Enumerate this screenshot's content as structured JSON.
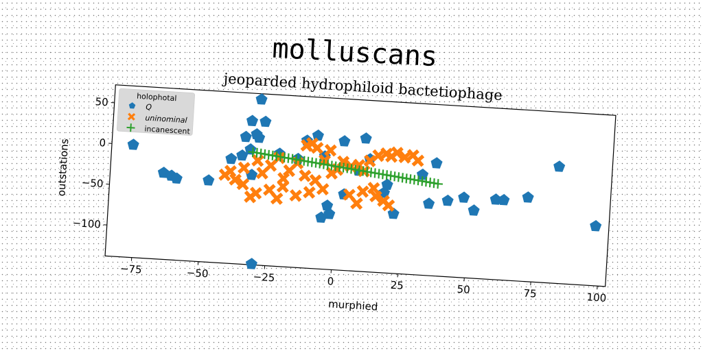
{
  "suptitle": "molluscans",
  "chart_data": {
    "type": "scatter",
    "title": "jeoparded hydrophiloid bactetiophage",
    "xlabel": "murphied",
    "ylabel": "outstations",
    "xlim": [
      -85,
      103
    ],
    "ylim": [
      -138,
      72
    ],
    "xticks": [
      -75,
      -50,
      -25,
      0,
      25,
      50,
      75,
      100
    ],
    "xticklabels": [
      "−75",
      "−50",
      "−25",
      "0",
      "25",
      "50",
      "75",
      "100"
    ],
    "yticks": [
      50,
      0,
      -50,
      -100
    ],
    "yticklabels": [
      "50",
      "0",
      "−50",
      "−100"
    ],
    "grid": false,
    "legend": {
      "title": "holophotal",
      "placement": "top-left"
    },
    "series": [
      {
        "name": "Q",
        "marker": "pentagon",
        "color": "#1f77b4",
        "points": [
          [
            -77,
            0
          ],
          [
            -65,
            -32
          ],
          [
            -62,
            -35
          ],
          [
            -60,
            -38
          ],
          [
            -48,
            -38
          ],
          [
            -40,
            -10
          ],
          [
            -36,
            -5
          ],
          [
            -35,
            18
          ],
          [
            -33,
            38
          ],
          [
            -31,
            22
          ],
          [
            -30,
            18
          ],
          [
            -28,
            38
          ],
          [
            -30,
            65
          ],
          [
            -33,
            3
          ],
          [
            -32,
            -28
          ],
          [
            -30,
            -137
          ],
          [
            -12,
            18
          ],
          [
            -8,
            25
          ],
          [
            -5,
            0
          ],
          [
            -2,
            -70
          ],
          [
            -3,
            -60
          ],
          [
            -5,
            -75
          ],
          [
            2,
            20
          ],
          [
            3,
            -45
          ],
          [
            8,
            -15
          ],
          [
            10,
            25
          ],
          [
            12,
            0
          ],
          [
            18,
            -40
          ],
          [
            19,
            -30
          ],
          [
            22,
            -65
          ],
          [
            32,
            -15
          ],
          [
            35,
            -50
          ],
          [
            37,
            0
          ],
          [
            42,
            -45
          ],
          [
            48,
            -40
          ],
          [
            52,
            -55
          ],
          [
            60,
            -40
          ],
          [
            63,
            -40
          ],
          [
            72,
            -35
          ],
          [
            83,
            5
          ],
          [
            98,
            -65
          ],
          [
            -22,
            0
          ],
          [
            -15,
            -5
          ]
        ]
      },
      {
        "name": "uninominal",
        "marker": "X",
        "color": "#ff7f0e",
        "points": [
          [
            -42,
            -30
          ],
          [
            -40,
            -25
          ],
          [
            -38,
            -35
          ],
          [
            -35,
            -20
          ],
          [
            -30,
            -10
          ],
          [
            -28,
            -25
          ],
          [
            -25,
            -15
          ],
          [
            -22,
            -5
          ],
          [
            -20,
            -30
          ],
          [
            -18,
            -20
          ],
          [
            -15,
            -10
          ],
          [
            -12,
            -25
          ],
          [
            -10,
            15
          ],
          [
            -8,
            10
          ],
          [
            -5,
            -5
          ],
          [
            -2,
            -20
          ],
          [
            0,
            -15
          ],
          [
            2,
            -5
          ],
          [
            5,
            -10
          ],
          [
            8,
            -8
          ],
          [
            10,
            -15
          ],
          [
            12,
            -2
          ],
          [
            15,
            5
          ],
          [
            18,
            8
          ],
          [
            20,
            5
          ],
          [
            22,
            10
          ],
          [
            25,
            5
          ],
          [
            28,
            8
          ],
          [
            30,
            2
          ],
          [
            -30,
            -50
          ],
          [
            -25,
            -45
          ],
          [
            -20,
            -40
          ],
          [
            -15,
            -50
          ],
          [
            -10,
            -45
          ],
          [
            -5,
            -40
          ],
          [
            5,
            -45
          ],
          [
            8,
            -55
          ],
          [
            15,
            -45
          ],
          [
            18,
            -50
          ],
          [
            20,
            -55
          ],
          [
            -35,
            -40
          ],
          [
            -32,
            -55
          ],
          [
            -22,
            -55
          ],
          [
            -8,
            -30
          ],
          [
            10,
            -40
          ],
          [
            -12,
            12
          ],
          [
            -3,
            8
          ],
          [
            14,
            -35
          ]
        ]
      },
      {
        "name": "incanescent",
        "marker": "+",
        "color": "#2ca02c",
        "x_range": [
          -32,
          38
        ],
        "y_range": [
          0,
          -25
        ],
        "count": 48
      }
    ]
  }
}
